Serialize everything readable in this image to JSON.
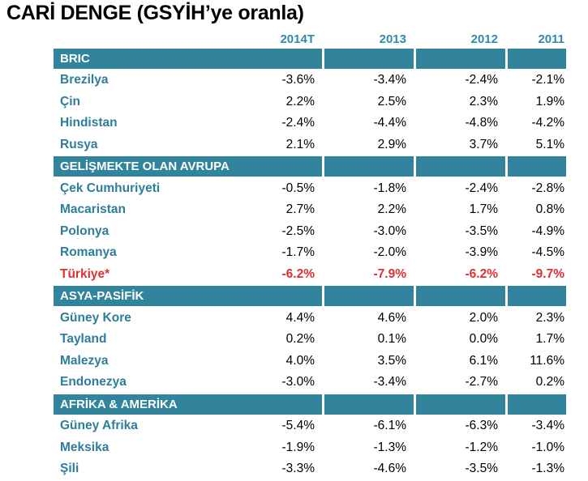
{
  "title": "CARİ DENGE (GSYİH’ye oranla)",
  "columns": [
    "2014T",
    "2013",
    "2012",
    "2011"
  ],
  "sections": [
    {
      "name": "BRIC",
      "rows": [
        {
          "country": "Brezilya",
          "values": [
            "-3.6%",
            "-3.4%",
            "-2.4%",
            "-2.1%"
          ]
        },
        {
          "country": "Çin",
          "values": [
            "2.2%",
            "2.5%",
            "2.3%",
            "1.9%"
          ]
        },
        {
          "country": "Hindistan",
          "values": [
            "-2.4%",
            "-4.4%",
            "-4.8%",
            "-4.2%"
          ]
        },
        {
          "country": "Rusya",
          "values": [
            "2.1%",
            "2.9%",
            "3.7%",
            "5.1%"
          ]
        }
      ]
    },
    {
      "name": "GELİŞMEKTE OLAN AVRUPA",
      "rows": [
        {
          "country": "Çek Cumhuriyeti",
          "values": [
            "-0.5%",
            "-1.8%",
            "-2.4%",
            "-2.8%"
          ]
        },
        {
          "country": "Macaristan",
          "values": [
            "2.7%",
            "2.2%",
            "1.7%",
            "0.8%"
          ]
        },
        {
          "country": "Polonya",
          "values": [
            "-2.5%",
            "-3.0%",
            "-3.5%",
            "-4.9%"
          ]
        },
        {
          "country": "Romanya",
          "values": [
            "-1.7%",
            "-2.0%",
            "-3.9%",
            "-4.5%"
          ]
        },
        {
          "country": "Türkiye*",
          "values": [
            "-6.2%",
            "-7.9%",
            "-6.2%",
            "-9.7%"
          ],
          "highlight": true
        }
      ]
    },
    {
      "name": "ASYA-PASİFİK",
      "rows": [
        {
          "country": "Güney Kore",
          "values": [
            "4.4%",
            "4.6%",
            "2.0%",
            "2.3%"
          ]
        },
        {
          "country": "Tayland",
          "values": [
            "0.2%",
            "0.1%",
            "0.0%",
            "1.7%"
          ]
        },
        {
          "country": "Malezya",
          "values": [
            "4.0%",
            "3.5%",
            "6.1%",
            "11.6%"
          ]
        },
        {
          "country": "Endonezya",
          "values": [
            "-3.0%",
            "-3.4%",
            "-2.7%",
            "0.2%"
          ]
        }
      ]
    },
    {
      "name": "AFRİKA & AMERİKA",
      "rows": [
        {
          "country": "Güney Afrika",
          "values": [
            "-5.4%",
            "-6.1%",
            "-6.3%",
            "-3.4%"
          ]
        },
        {
          "country": "Meksika",
          "values": [
            "-1.9%",
            "-1.3%",
            "-1.2%",
            "-1.0%"
          ]
        },
        {
          "country": "Şili",
          "values": [
            "-3.3%",
            "-4.6%",
            "-3.5%",
            "-1.3%"
          ]
        }
      ]
    }
  ],
  "colors": {
    "section_band": "#31849b",
    "country_text": "#2e7d9a",
    "highlight": "#e03030"
  }
}
